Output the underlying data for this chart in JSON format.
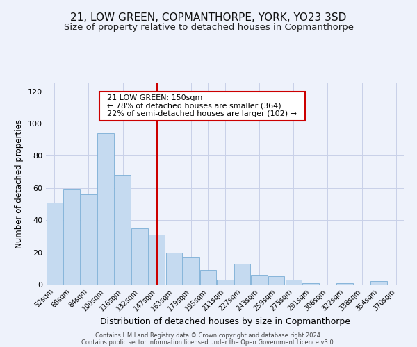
{
  "title": "21, LOW GREEN, COPMANTHORPE, YORK, YO23 3SD",
  "subtitle": "Size of property relative to detached houses in Copmanthorpe",
  "xlabel": "Distribution of detached houses by size in Copmanthorpe",
  "ylabel": "Number of detached properties",
  "categories": [
    "52sqm",
    "68sqm",
    "84sqm",
    "100sqm",
    "116sqm",
    "132sqm",
    "147sqm",
    "163sqm",
    "179sqm",
    "195sqm",
    "211sqm",
    "227sqm",
    "243sqm",
    "259sqm",
    "275sqm",
    "291sqm",
    "306sqm",
    "322sqm",
    "338sqm",
    "354sqm",
    "370sqm"
  ],
  "values": [
    51,
    59,
    56,
    94,
    68,
    35,
    31,
    20,
    17,
    9,
    3,
    13,
    6,
    5,
    3,
    1,
    0,
    1,
    0,
    2,
    0
  ],
  "bar_color": "#c5daf0",
  "bar_edge_color": "#7aadd5",
  "vline_x_index": 6,
  "vline_color": "#cc0000",
  "annotation_title": "21 LOW GREEN: 150sqm",
  "annotation_line1": "← 78% of detached houses are smaller (364)",
  "annotation_line2": "22% of semi-detached houses are larger (102) →",
  "annotation_box_color": "#cc0000",
  "ylim": [
    0,
    125
  ],
  "yticks": [
    0,
    20,
    40,
    60,
    80,
    100,
    120
  ],
  "footer1": "Contains HM Land Registry data © Crown copyright and database right 2024.",
  "footer2": "Contains public sector information licensed under the Open Government Licence v3.0.",
  "bg_color": "#eef2fb",
  "grid_color": "#c8d0e8",
  "title_fontsize": 11,
  "subtitle_fontsize": 9.5
}
